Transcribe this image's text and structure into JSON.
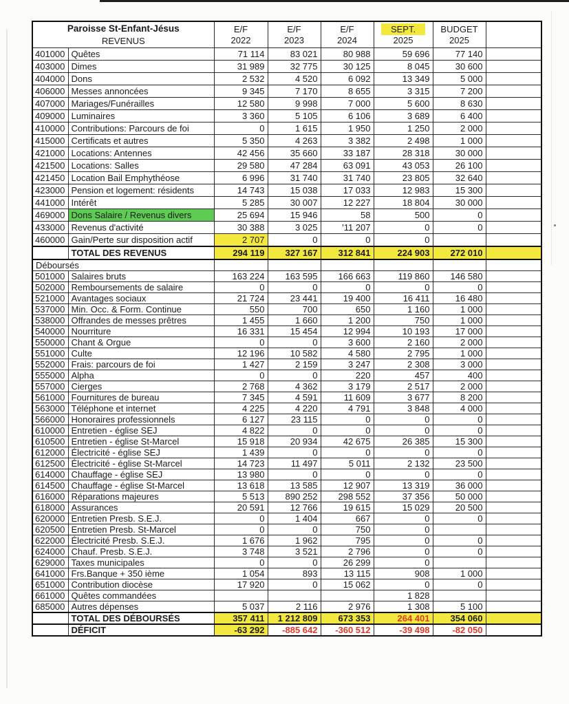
{
  "header": {
    "title_line1": "Paroisse St-Enfant-Jésus",
    "title_line2": "REVENUS",
    "columns": [
      {
        "line1": "E/F",
        "line2": "2022"
      },
      {
        "line1": "E/F",
        "line2": "2023"
      },
      {
        "line1": "E/F",
        "line2": "2024"
      },
      {
        "line1": "SEPT.",
        "line2": "2025",
        "highlight": "yellow"
      },
      {
        "line1": "BUDGET",
        "line2": "2025"
      }
    ]
  },
  "revenues": {
    "rows": [
      {
        "code": "401000",
        "label": "Quêtes",
        "values": [
          "71 114",
          "83 021",
          "80 988",
          "59 696",
          "77 140"
        ]
      },
      {
        "code": "403000",
        "label": "Dimes",
        "values": [
          "31 989",
          "32 775",
          "30 125",
          "8 045",
          "30 600"
        ]
      },
      {
        "code": "404000",
        "label": "Dons",
        "values": [
          "2 532",
          "4 520",
          "6 092",
          "13 349",
          "5 000"
        ]
      },
      {
        "code": "406000",
        "label": "Messes annoncées",
        "values": [
          "9 345",
          "7 170",
          "8 655",
          "3 315",
          "7 200"
        ]
      },
      {
        "code": "407000",
        "label": "Mariages/Funérailles",
        "values": [
          "12 580",
          "9 998",
          "7 000",
          "5 600",
          "8 630"
        ]
      },
      {
        "code": "409000",
        "label": "Luminaires",
        "values": [
          "3 360",
          "5 105",
          "6 106",
          "3 689",
          "6 400"
        ]
      },
      {
        "code": "410000",
        "label": "Contributions: Parcours de foi",
        "values": [
          "0",
          "1 615",
          "1 950",
          "1 250",
          "2 000"
        ]
      },
      {
        "code": "415000",
        "label": "Certificats et autres",
        "values": [
          "5 350",
          "4 263",
          "3 382",
          "2 498",
          "1 000"
        ]
      },
      {
        "code": "421000",
        "label": "Locations: Antennes",
        "values": [
          "42 456",
          "35 660",
          "33 187",
          "28 318",
          "30 000"
        ]
      },
      {
        "code": "421500",
        "label": "Locations: Salles",
        "values": [
          "29 580",
          "47 284",
          "63 091",
          "43 053",
          "26 100"
        ]
      },
      {
        "code": "421450",
        "label": "Location Bail Emphythéose",
        "values": [
          "6 996",
          "31 740",
          "31 740",
          "23 805",
          "32 640"
        ]
      },
      {
        "code": "423000",
        "label": "Pension et logement: résidents",
        "values": [
          "14 743",
          "15 038",
          "17 033",
          "12 983",
          "15 300"
        ]
      },
      {
        "code": "441000",
        "label": "Intérêt",
        "values": [
          "5 285",
          "30 007",
          "12 227",
          "18 804",
          "30 000"
        ]
      },
      {
        "code": "469000",
        "label": "Dons Salaire / Revenus divers",
        "label_highlight": "green",
        "values": [
          "25 694",
          "15 946",
          "58",
          "500",
          "0"
        ]
      },
      {
        "code": "433000",
        "label": "Revenus d'activité",
        "values": [
          "30 388",
          "3 025",
          "'11 207",
          "0",
          "0"
        ]
      },
      {
        "code": "460000",
        "label": "Gain/Perte sur disposition actif",
        "values": [
          "2 707",
          "0",
          "0",
          "0",
          ""
        ],
        "value_highlights": [
          "yellow",
          null,
          null,
          null,
          null
        ]
      }
    ],
    "total": {
      "label": "TOTAL DES REVENUS",
      "values": [
        "294 119",
        "327 167",
        "312 841",
        "224 903",
        "272 010"
      ],
      "band": "yellow"
    }
  },
  "expenses": {
    "section_label": "Déboursés",
    "rows": [
      {
        "code": "501000",
        "label": "Salaires bruts",
        "values": [
          "163 224",
          "163 595",
          "166 663",
          "119 860",
          "146 580"
        ]
      },
      {
        "code": "502000",
        "label": "Remboursements de salaire",
        "values": [
          "0",
          "0",
          "0",
          "0",
          "0"
        ]
      },
      {
        "code": "521000",
        "label": "Avantages sociaux",
        "values": [
          "21 724",
          "23 441",
          "19 400",
          "16 411",
          "16 480"
        ]
      },
      {
        "code": "537000",
        "label": "Min. Occ. & Form. Continue",
        "values": [
          "550",
          "700",
          "650",
          "1 160",
          "1 000"
        ]
      },
      {
        "code": "538000",
        "label": "Offrandes de messes prêtres",
        "values": [
          "1 455",
          "1 660",
          "1 200",
          "750",
          "1 000"
        ]
      },
      {
        "code": "540000",
        "label": "Nourriture",
        "values": [
          "16 331",
          "15 454",
          "12 994",
          "10 193",
          "17 000"
        ]
      },
      {
        "code": "550000",
        "label": "Chant & Orgue",
        "values": [
          "0",
          "0",
          "3 600",
          "2 160",
          "2 000"
        ]
      },
      {
        "code": "551000",
        "label": "Culte",
        "values": [
          "12 196",
          "10 582",
          "4 580",
          "2 795",
          "1 000"
        ]
      },
      {
        "code": "552000",
        "label": "Frais: parcours de foi",
        "values": [
          "1 427",
          "2 159",
          "3 247",
          "2 308",
          "3 000"
        ]
      },
      {
        "code": "555000",
        "label": "Alpha",
        "values": [
          "0",
          "0",
          "220",
          "457",
          "400"
        ]
      },
      {
        "code": "557000",
        "label": "Cierges",
        "values": [
          "2 768",
          "4 362",
          "3 179",
          "2 517",
          "2 000"
        ]
      },
      {
        "code": "561000",
        "label": "Fournitures de bureau",
        "values": [
          "7 345",
          "4 591",
          "11 609",
          "3 677",
          "8 200"
        ]
      },
      {
        "code": "563000",
        "label": "Téléphone et internet",
        "values": [
          "4 225",
          "4 220",
          "4 791",
          "3 848",
          "4 000"
        ]
      },
      {
        "code": "566000",
        "label": "Honoraires professionnels",
        "values": [
          "6 127",
          "23 115",
          "0",
          "0",
          "0"
        ]
      },
      {
        "code": "610000",
        "label": "Entretien - église SEJ",
        "values": [
          "4 822",
          "0",
          "0",
          "0",
          "0"
        ]
      },
      {
        "code": "610500",
        "label": "Entretien - église St-Marcel",
        "values": [
          "15 918",
          "20 934",
          "42 675",
          "26 385",
          "15 300"
        ]
      },
      {
        "code": "612000",
        "label": "Électricité - église SEJ",
        "values": [
          "1 439",
          "0",
          "0",
          "0",
          "0"
        ]
      },
      {
        "code": "612500",
        "label": "Électricité - église St-Marcel",
        "values": [
          "14 723",
          "11 497",
          "5 011",
          "2 132",
          "23 500"
        ]
      },
      {
        "code": "614000",
        "label": "Chauffage - église SEJ",
        "values": [
          "13 980",
          "0",
          "0",
          "0",
          "0"
        ]
      },
      {
        "code": "614500",
        "label": "Chauffage - église St-Marcel",
        "values": [
          "13 618",
          "13 585",
          "12 907",
          "13 319",
          "36 000"
        ]
      },
      {
        "code": "616000",
        "label": "Réparations majeures",
        "values": [
          "5 513",
          "890 252",
          "298 552",
          "37 356",
          "50 000"
        ]
      },
      {
        "code": "618000",
        "label": "Assurances",
        "values": [
          "20 591",
          "12 766",
          "19 615",
          "15 029",
          "20 500"
        ]
      },
      {
        "code": "620000",
        "label": "Entretien Presb. S.E.J.",
        "values": [
          "0",
          "1 404",
          "667",
          "0",
          "0"
        ]
      },
      {
        "code": "620500",
        "label": "Entretien Presb. St-Marcel",
        "values": [
          "0",
          "0",
          "750",
          "0",
          ""
        ]
      },
      {
        "code": "622000",
        "label": "Électricité Presb. S.E.J.",
        "values": [
          "1 676",
          "1 962",
          "795",
          "0",
          "0"
        ]
      },
      {
        "code": "624000",
        "label": "Chauf. Presb. S.E.J.",
        "values": [
          "3 748",
          "3 521",
          "2 796",
          "0",
          "0"
        ]
      },
      {
        "code": "629000",
        "label": "Taxes municipales",
        "values": [
          "0",
          "0",
          "26 299",
          "0",
          ""
        ]
      },
      {
        "code": "641000",
        "label": "Frs.Banque + 350 ième",
        "values": [
          "1 054",
          "893",
          "13 115",
          "908",
          "1 000"
        ]
      },
      {
        "code": "651000",
        "label": "Contribution diocèse",
        "values": [
          "17 920",
          "0",
          "15 062",
          "0",
          "0"
        ]
      },
      {
        "code": "661000",
        "label": "Quêtes commandées",
        "values": [
          "",
          "",
          "",
          "1 828",
          ""
        ]
      },
      {
        "code": "685000",
        "label": "Autres dépenses",
        "values": [
          "5 037",
          "2 116",
          "2 976",
          "1 308",
          "5 100"
        ]
      }
    ],
    "total": {
      "label": "TOTAL DES DÉBOURSÉS",
      "values": [
        "357 411",
        "1 212 809",
        "673 353",
        "264 401",
        "354 060"
      ],
      "band": "yellow",
      "value_colors": [
        null,
        null,
        null,
        "red",
        null
      ]
    },
    "deficit": {
      "label": "DÉFICIT",
      "values": [
        "-63 292",
        "-885 642",
        "-360 512",
        "-39 498",
        "-82 050"
      ],
      "value_highlights": [
        "yellow",
        null,
        null,
        null,
        null
      ],
      "value_colors": [
        null,
        "red",
        "red",
        "red",
        "red"
      ]
    }
  },
  "colors": {
    "highlight_yellow": "#f3e93e",
    "highlight_green": "#5ecb52",
    "negative_red": "#e0392a"
  }
}
